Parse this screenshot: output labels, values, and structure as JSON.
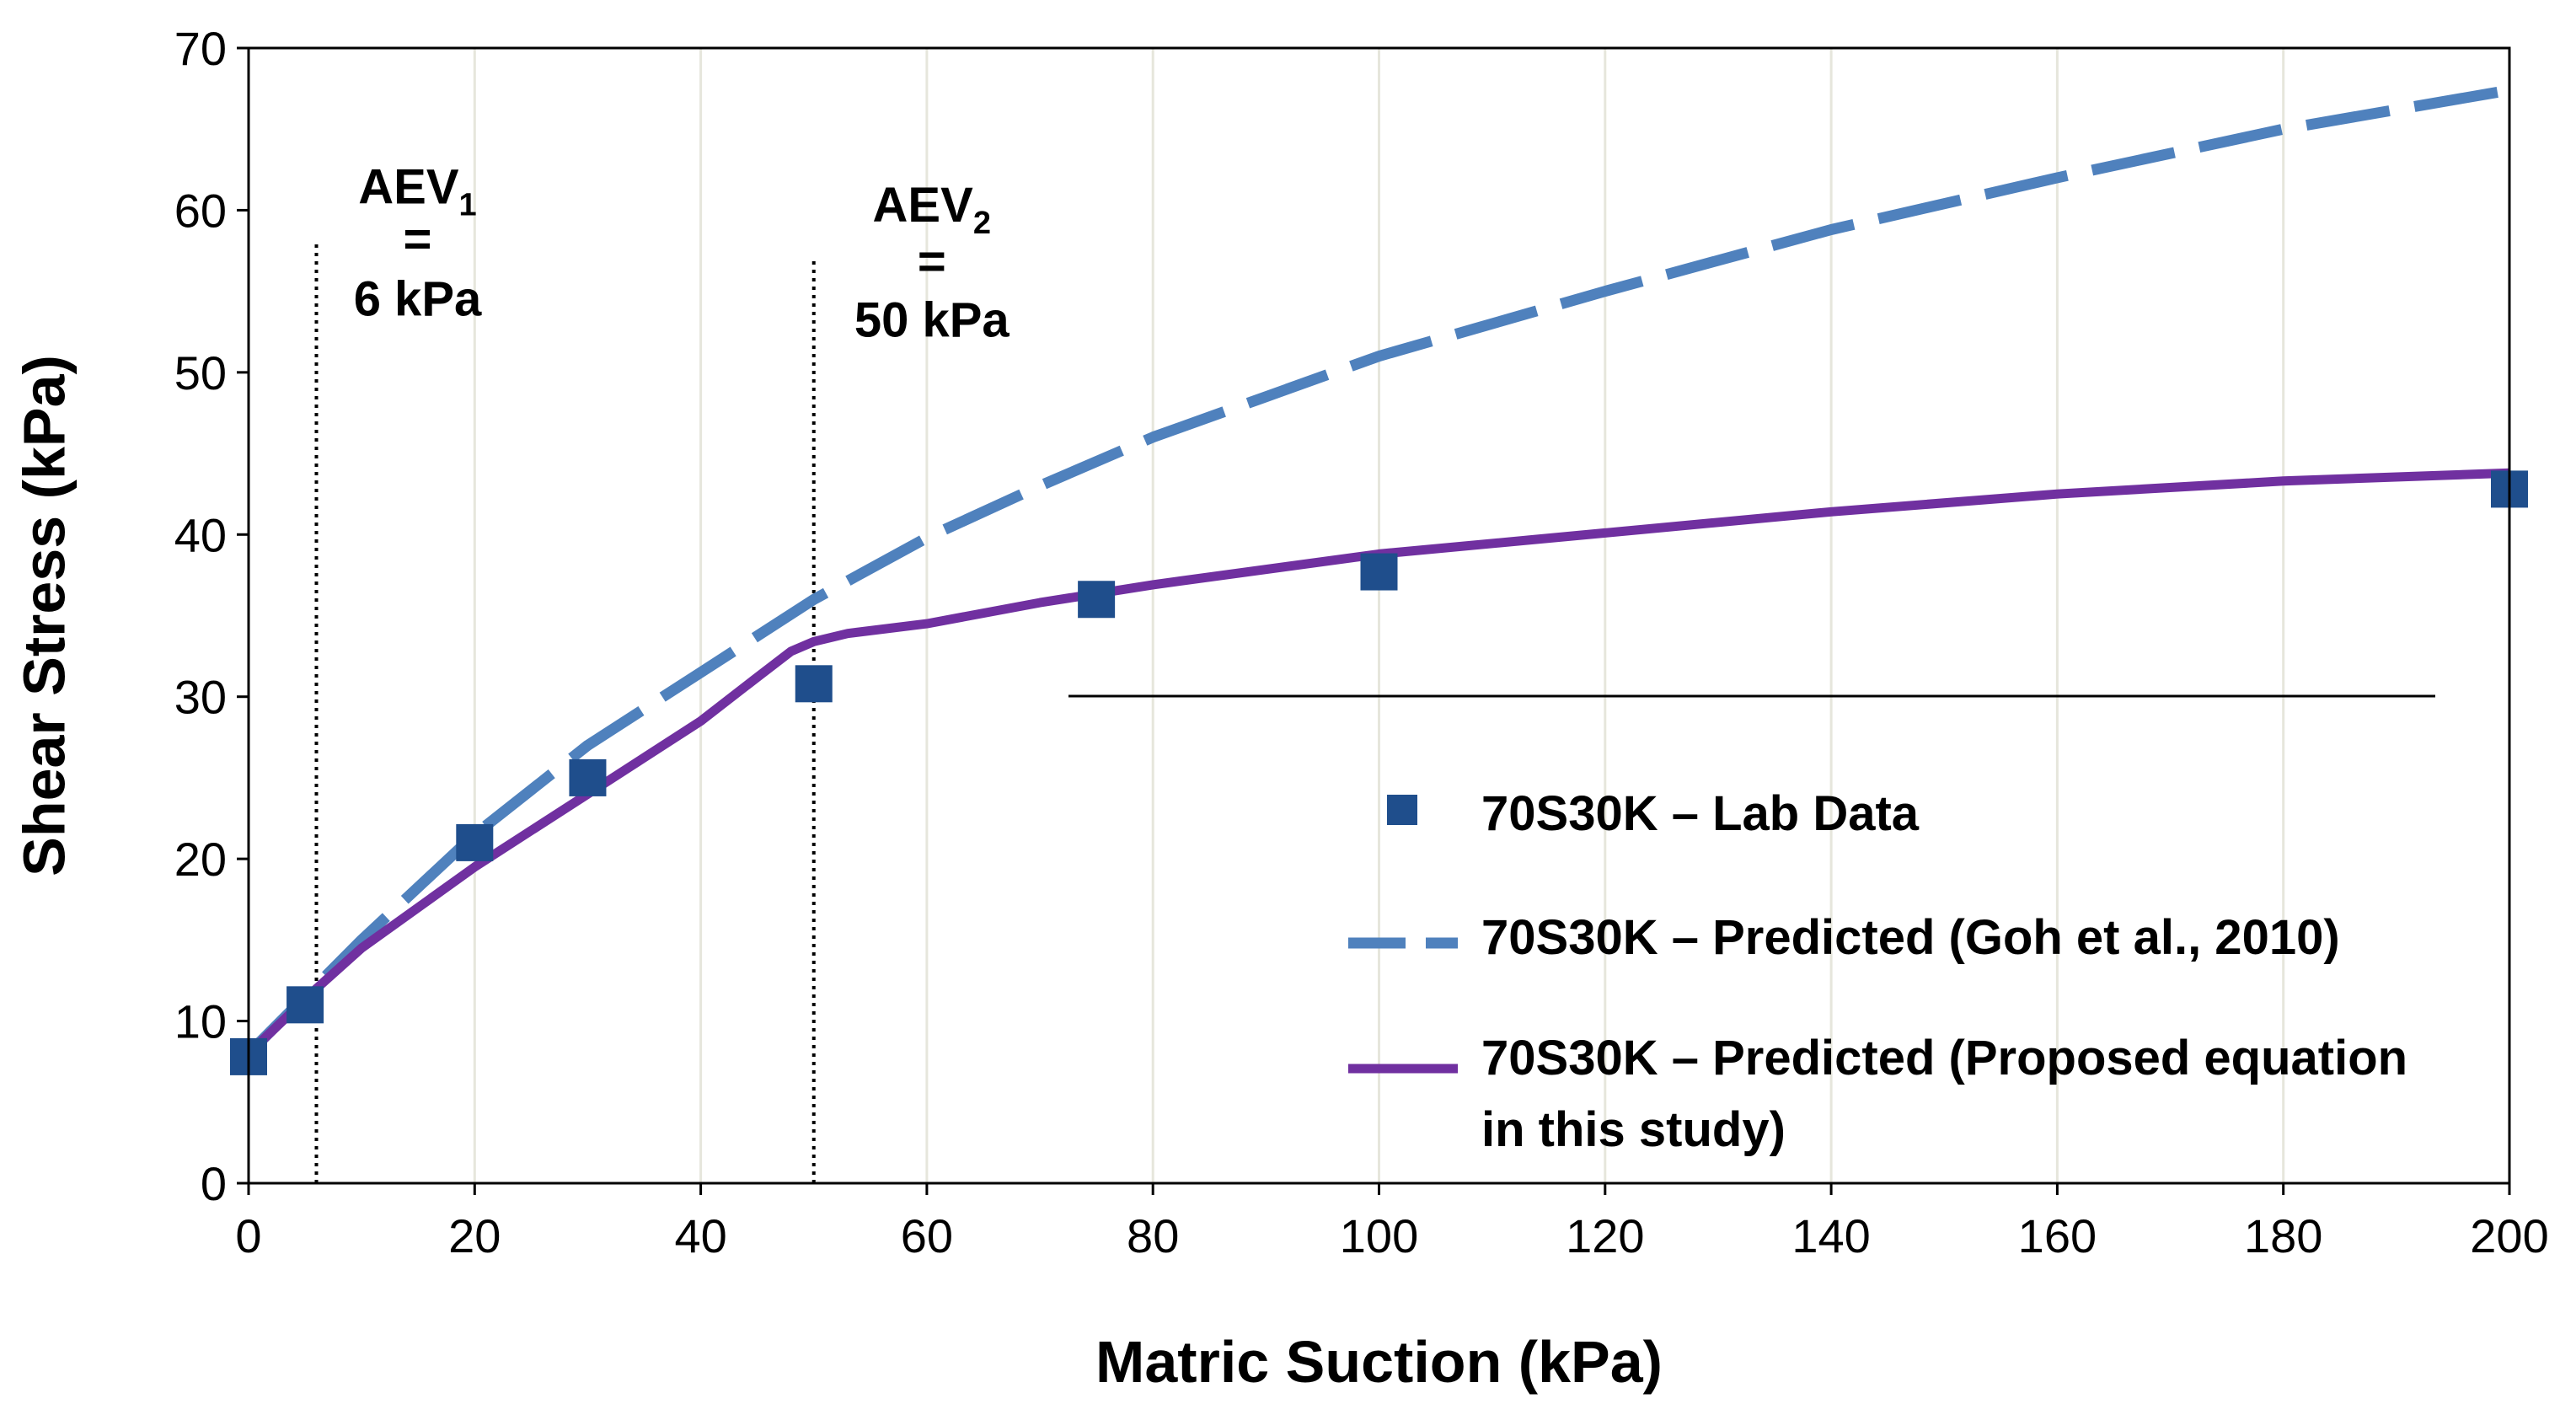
{
  "chart_data": {
    "type": "line",
    "xlabel": "Matric Suction (kPa)",
    "ylabel": "Shear Stress (kPa)",
    "xlim": [
      0,
      200
    ],
    "ylim": [
      0,
      70
    ],
    "xticks": [
      0,
      20,
      40,
      60,
      80,
      100,
      120,
      140,
      160,
      180,
      200
    ],
    "yticks": [
      0,
      10,
      20,
      30,
      40,
      50,
      60,
      70
    ],
    "grid": "vertical",
    "legend_position": "bottom-right",
    "series": [
      {
        "name": "70S30K – Lab Data",
        "kind": "scatter",
        "color": "#1F4E8C",
        "x": [
          0,
          5,
          20,
          30,
          50,
          75,
          100,
          200
        ],
        "y": [
          7.8,
          11,
          21,
          25,
          30.8,
          36,
          37.7,
          42.8
        ]
      },
      {
        "name": "70S30K – Predicted (Goh et al., 2010)",
        "kind": "dashed-line",
        "color": "#4F81BD",
        "x": [
          0,
          6,
          10,
          20,
          30,
          40,
          50,
          60,
          70,
          80,
          90,
          100,
          120,
          140,
          160,
          180,
          200
        ],
        "y": [
          8,
          12.2,
          15,
          21.5,
          27,
          31.5,
          36,
          39.8,
          43,
          46,
          48.5,
          51,
          55,
          58.8,
          62,
          65,
          67.4
        ]
      },
      {
        "name": "70S30K – Predicted (Proposed equation in this study)",
        "legend_lines": [
          "70S30K – Predicted (Proposed equation",
          "in this study)"
        ],
        "kind": "line",
        "color": "#7030A0",
        "x": [
          0,
          6,
          10,
          20,
          30,
          40,
          45,
          48,
          50,
          53,
          60,
          70,
          80,
          100,
          120,
          140,
          160,
          180,
          200
        ],
        "y": [
          8,
          12,
          14.5,
          19.5,
          24,
          28.5,
          31.2,
          32.8,
          33.4,
          33.9,
          34.5,
          35.8,
          36.9,
          38.8,
          40.1,
          41.4,
          42.5,
          43.3,
          43.8
        ]
      }
    ],
    "reference_lines": [
      {
        "x": 6,
        "y_top": 58
      },
      {
        "x": 50,
        "y_top": 57
      }
    ],
    "annotations": [
      {
        "base": "AEV",
        "sub": "1",
        "eq": "=",
        "value": "6 kPa"
      },
      {
        "base": "AEV",
        "sub": "2",
        "eq": "=",
        "value": "50 kPa"
      }
    ]
  }
}
